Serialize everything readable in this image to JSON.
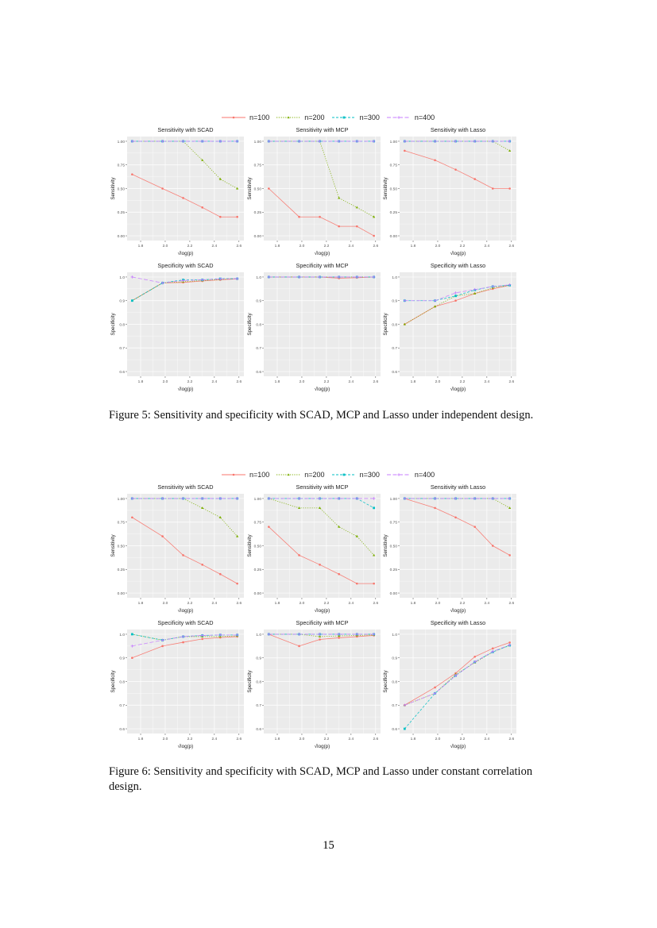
{
  "figures": [
    {
      "caption": "Figure 5: Sensitivity and specificity with SCAD, MCP and Lasso under independent design.",
      "legend": [
        "n=100",
        "n=200",
        "n=300",
        "n=400"
      ],
      "charts": [
        0,
        1,
        2,
        3,
        4,
        5
      ]
    },
    {
      "caption": "Figure 6: Sensitivity and specificity with SCAD, MCP and Lasso under constant correlation design.",
      "legend": [
        "n=100",
        "n=200",
        "n=300",
        "n=400"
      ],
      "charts": [
        6,
        7,
        8,
        9,
        10,
        11
      ]
    }
  ],
  "series_style": [
    {
      "name": "n=100",
      "color": "#F8766D",
      "dash": "solid",
      "marker": "dot"
    },
    {
      "name": "n=200",
      "color": "#7CAE00",
      "dash": "dotted",
      "marker": "triangle"
    },
    {
      "name": "n=300",
      "color": "#00BFC4",
      "dash": "dashed",
      "marker": "square"
    },
    {
      "name": "n=400",
      "color": "#C77CFF",
      "dash": "longdash",
      "marker": "plus"
    }
  ],
  "page_number": "15",
  "chart_data": [
    {
      "type": "line",
      "title": "Sensitivity with SCAD",
      "xlabel": "√log(p)",
      "ylabel": "Sensitivity",
      "x": [
        1.731,
        1.978,
        2.146,
        2.302,
        2.448,
        2.586
      ],
      "xticks": [
        "1.8",
        "2.0",
        "2.2",
        "2.4",
        "2.6"
      ],
      "yticks": [
        "0.00",
        "0.25",
        "0.50",
        "0.75",
        "1.00"
      ],
      "ylim": [
        -0.05,
        1.05
      ],
      "xlim": [
        1.69,
        2.64
      ],
      "grid": true,
      "legend": "top",
      "series": [
        {
          "name": "n=100",
          "values": [
            0.65,
            0.5,
            0.4,
            0.3,
            0.2,
            0.2
          ]
        },
        {
          "name": "n=200",
          "values": [
            1,
            1,
            1,
            0.8,
            0.6,
            0.5
          ]
        },
        {
          "name": "n=300",
          "values": [
            1,
            1,
            1,
            1,
            1,
            1
          ]
        },
        {
          "name": "n=400",
          "values": [
            1,
            1,
            1,
            1,
            1,
            1
          ]
        }
      ]
    },
    {
      "type": "line",
      "title": "Sensitivity with MCP",
      "xlabel": "√log(p)",
      "ylabel": "Sensitivity",
      "x": [
        1.731,
        1.978,
        2.146,
        2.302,
        2.448,
        2.586
      ],
      "xticks": [
        "1.8",
        "2.0",
        "2.2",
        "2.4",
        "2.6"
      ],
      "yticks": [
        "0.00",
        "0.25",
        "0.50",
        "0.75",
        "1.00"
      ],
      "ylim": [
        -0.05,
        1.05
      ],
      "xlim": [
        1.69,
        2.64
      ],
      "grid": true,
      "legend": "top",
      "series": [
        {
          "name": "n=100",
          "values": [
            0.5,
            0.2,
            0.2,
            0.1,
            0.1,
            0.0
          ]
        },
        {
          "name": "n=200",
          "values": [
            1,
            1,
            1,
            0.4,
            0.3,
            0.2
          ]
        },
        {
          "name": "n=300",
          "values": [
            1,
            1,
            1,
            1,
            1,
            1
          ]
        },
        {
          "name": "n=400",
          "values": [
            1,
            1,
            1,
            1,
            1,
            1
          ]
        }
      ]
    },
    {
      "type": "line",
      "title": "Sensitivity with Lasso",
      "xlabel": "√log(p)",
      "ylabel": "Sensitivity",
      "x": [
        1.731,
        1.978,
        2.146,
        2.302,
        2.448,
        2.586
      ],
      "xticks": [
        "1.8",
        "2.0",
        "2.2",
        "2.4",
        "2.6"
      ],
      "yticks": [
        "0.00",
        "0.25",
        "0.50",
        "0.75",
        "1.00"
      ],
      "ylim": [
        -0.05,
        1.05
      ],
      "xlim": [
        1.69,
        2.64
      ],
      "grid": true,
      "legend": "top",
      "series": [
        {
          "name": "n=100",
          "values": [
            0.9,
            0.8,
            0.7,
            0.6,
            0.5,
            0.5
          ]
        },
        {
          "name": "n=200",
          "values": [
            1,
            1,
            1,
            1,
            1,
            0.9
          ]
        },
        {
          "name": "n=300",
          "values": [
            1,
            1,
            1,
            1,
            1,
            1
          ]
        },
        {
          "name": "n=400",
          "values": [
            1,
            1,
            1,
            1,
            1,
            1
          ]
        }
      ]
    },
    {
      "type": "line",
      "title": "Specificity with SCAD",
      "xlabel": "√log(p)",
      "ylabel": "Specificity",
      "x": [
        1.731,
        1.978,
        2.146,
        2.302,
        2.448,
        2.586
      ],
      "xticks": [
        "1.8",
        "2.0",
        "2.2",
        "2.4",
        "2.6"
      ],
      "yticks": [
        "0.6",
        "0.7",
        "0.8",
        "0.9",
        "1.0"
      ],
      "ylim": [
        0.58,
        1.02
      ],
      "xlim": [
        1.69,
        2.64
      ],
      "grid": true,
      "legend": "top",
      "series": [
        {
          "name": "n=100",
          "values": [
            0.9,
            0.975,
            0.977,
            0.983,
            0.988,
            0.992
          ]
        },
        {
          "name": "n=200",
          "values": [
            0.9,
            0.975,
            0.98,
            0.985,
            0.99,
            0.993
          ]
        },
        {
          "name": "n=300",
          "values": [
            0.9,
            0.975,
            0.988,
            0.988,
            0.993,
            0.993
          ]
        },
        {
          "name": "n=400",
          "values": [
            1.0,
            0.975,
            0.985,
            0.988,
            0.992,
            0.993
          ]
        }
      ]
    },
    {
      "type": "line",
      "title": "Specificity with MCP",
      "xlabel": "√log(p)",
      "ylabel": "Specificity",
      "x": [
        1.731,
        1.978,
        2.146,
        2.302,
        2.448,
        2.586
      ],
      "xticks": [
        "1.8",
        "2.0",
        "2.2",
        "2.4",
        "2.6"
      ],
      "yticks": [
        "0.6",
        "0.7",
        "0.8",
        "0.9",
        "1.0"
      ],
      "ylim": [
        0.58,
        1.02
      ],
      "xlim": [
        1.69,
        2.64
      ],
      "grid": true,
      "legend": "top",
      "series": [
        {
          "name": "n=100",
          "values": [
            1,
            1,
            1,
            0.995,
            0.997,
            1
          ]
        },
        {
          "name": "n=200",
          "values": [
            1,
            1,
            1,
            1,
            1,
            1
          ]
        },
        {
          "name": "n=300",
          "values": [
            1,
            1,
            1,
            1,
            1,
            1
          ]
        },
        {
          "name": "n=400",
          "values": [
            1,
            1,
            1,
            1,
            1,
            1
          ]
        }
      ]
    },
    {
      "type": "line",
      "title": "Specificity with Lasso",
      "xlabel": "√log(p)",
      "ylabel": "Specificity",
      "x": [
        1.731,
        1.978,
        2.146,
        2.302,
        2.448,
        2.586
      ],
      "xticks": [
        "1.8",
        "2.0",
        "2.2",
        "2.4",
        "2.6"
      ],
      "yticks": [
        "0.6",
        "0.7",
        "0.8",
        "0.9",
        "1.0"
      ],
      "ylim": [
        0.58,
        1.02
      ],
      "xlim": [
        1.69,
        2.64
      ],
      "grid": true,
      "legend": "top",
      "series": [
        {
          "name": "n=100",
          "values": [
            0.8,
            0.875,
            0.9,
            0.93,
            0.95,
            0.965
          ]
        },
        {
          "name": "n=200",
          "values": [
            0.8,
            0.875,
            0.92,
            0.93,
            0.955,
            0.965
          ]
        },
        {
          "name": "n=300",
          "values": [
            0.9,
            0.9,
            0.92,
            0.945,
            0.96,
            0.965
          ]
        },
        {
          "name": "n=400",
          "values": [
            0.9,
            0.9,
            0.933,
            0.947,
            0.96,
            0.967
          ]
        }
      ]
    },
    {
      "type": "line",
      "title": "Sensitivity with SCAD",
      "xlabel": "√log(p)",
      "ylabel": "Sensitivity",
      "x": [
        1.731,
        1.978,
        2.146,
        2.302,
        2.448,
        2.586
      ],
      "xticks": [
        "1.8",
        "2.0",
        "2.2",
        "2.4",
        "2.6"
      ],
      "yticks": [
        "0.00",
        "0.25",
        "0.50",
        "0.75",
        "1.00"
      ],
      "ylim": [
        -0.05,
        1.05
      ],
      "xlim": [
        1.69,
        2.64
      ],
      "grid": true,
      "legend": "top",
      "series": [
        {
          "name": "n=100",
          "values": [
            0.8,
            0.6,
            0.4,
            0.3,
            0.2,
            0.1
          ]
        },
        {
          "name": "n=200",
          "values": [
            1,
            1,
            1,
            0.9,
            0.8,
            0.6
          ]
        },
        {
          "name": "n=300",
          "values": [
            1,
            1,
            1,
            1,
            1,
            1
          ]
        },
        {
          "name": "n=400",
          "values": [
            1,
            1,
            1,
            1,
            1,
            1
          ]
        }
      ]
    },
    {
      "type": "line",
      "title": "Sensitivity with MCP",
      "xlabel": "√log(p)",
      "ylabel": "Sensitivity",
      "x": [
        1.731,
        1.978,
        2.146,
        2.302,
        2.448,
        2.586
      ],
      "xticks": [
        "1.8",
        "2.0",
        "2.2",
        "2.4",
        "2.6"
      ],
      "yticks": [
        "0.00",
        "0.25",
        "0.50",
        "0.75",
        "1.00"
      ],
      "ylim": [
        -0.05,
        1.05
      ],
      "xlim": [
        1.69,
        2.64
      ],
      "grid": true,
      "legend": "top",
      "series": [
        {
          "name": "n=100",
          "values": [
            0.7,
            0.4,
            0.3,
            0.2,
            0.1,
            0.1
          ]
        },
        {
          "name": "n=200",
          "values": [
            1,
            0.9,
            0.9,
            0.7,
            0.6,
            0.4
          ]
        },
        {
          "name": "n=300",
          "values": [
            1,
            1,
            1,
            1,
            1,
            0.9
          ]
        },
        {
          "name": "n=400",
          "values": [
            1,
            1,
            1,
            1,
            1,
            1
          ]
        }
      ]
    },
    {
      "type": "line",
      "title": "Sensitivity with Lasso",
      "xlabel": "√log(p)",
      "ylabel": "Sensitivity",
      "x": [
        1.731,
        1.978,
        2.146,
        2.302,
        2.448,
        2.586
      ],
      "xticks": [
        "1.8",
        "2.0",
        "2.2",
        "2.4",
        "2.6"
      ],
      "yticks": [
        "0.00",
        "0.25",
        "0.50",
        "0.75",
        "1.00"
      ],
      "ylim": [
        -0.05,
        1.05
      ],
      "xlim": [
        1.69,
        2.64
      ],
      "grid": true,
      "legend": "top",
      "series": [
        {
          "name": "n=100",
          "values": [
            1,
            0.9,
            0.8,
            0.7,
            0.5,
            0.4
          ]
        },
        {
          "name": "n=200",
          "values": [
            1,
            1,
            1,
            1,
            1,
            0.9
          ]
        },
        {
          "name": "n=300",
          "values": [
            1,
            1,
            1,
            1,
            1,
            1
          ]
        },
        {
          "name": "n=400",
          "values": [
            1,
            1,
            1,
            1,
            1,
            1
          ]
        }
      ]
    },
    {
      "type": "line",
      "title": "Specificity with SCAD",
      "xlabel": "√log(p)",
      "ylabel": "Specificity",
      "x": [
        1.731,
        1.978,
        2.146,
        2.302,
        2.448,
        2.586
      ],
      "xticks": [
        "1.8",
        "2.0",
        "2.2",
        "2.4",
        "2.6"
      ],
      "yticks": [
        "0.6",
        "0.7",
        "0.8",
        "0.9",
        "1.0"
      ],
      "ylim": [
        0.58,
        1.02
      ],
      "xlim": [
        1.69,
        2.64
      ],
      "grid": true,
      "legend": "top",
      "series": [
        {
          "name": "n=100",
          "values": [
            0.9,
            0.95,
            0.966,
            0.98,
            0.986,
            0.99
          ]
        },
        {
          "name": "n=200",
          "values": [
            1,
            0.975,
            0.99,
            0.99,
            0.99,
            0.993
          ]
        },
        {
          "name": "n=300",
          "values": [
            1,
            0.975,
            0.99,
            0.995,
            0.997,
            0.997
          ]
        },
        {
          "name": "n=400",
          "values": [
            0.95,
            0.975,
            0.99,
            0.995,
            0.997,
            0.997
          ]
        }
      ]
    },
    {
      "type": "line",
      "title": "Specificity with MCP",
      "xlabel": "√log(p)",
      "ylabel": "Specificity",
      "x": [
        1.731,
        1.978,
        2.146,
        2.302,
        2.448,
        2.586
      ],
      "xticks": [
        "1.8",
        "2.0",
        "2.2",
        "2.4",
        "2.6"
      ],
      "yticks": [
        "0.6",
        "0.7",
        "0.8",
        "0.9",
        "1.0"
      ],
      "ylim": [
        0.58,
        1.02
      ],
      "xlim": [
        1.69,
        2.64
      ],
      "grid": true,
      "legend": "top",
      "series": [
        {
          "name": "n=100",
          "values": [
            1,
            0.95,
            0.978,
            0.985,
            0.99,
            0.995
          ]
        },
        {
          "name": "n=200",
          "values": [
            1,
            1,
            0.99,
            0.993,
            0.995,
            0.997
          ]
        },
        {
          "name": "n=300",
          "values": [
            1,
            1,
            1,
            1,
            1,
            1
          ]
        },
        {
          "name": "n=400",
          "values": [
            1,
            1,
            1,
            1,
            1,
            1
          ]
        }
      ]
    },
    {
      "type": "line",
      "title": "Specificity with Lasso",
      "xlabel": "√log(p)",
      "ylabel": "Specificity",
      "x": [
        1.731,
        1.978,
        2.146,
        2.302,
        2.448,
        2.586
      ],
      "xticks": [
        "1.8",
        "2.0",
        "2.2",
        "2.4",
        "2.6"
      ],
      "yticks": [
        "0.6",
        "0.7",
        "0.8",
        "0.9",
        "1.0"
      ],
      "ylim": [
        0.58,
        1.02
      ],
      "xlim": [
        1.69,
        2.64
      ],
      "grid": true,
      "legend": "top",
      "series": [
        {
          "name": "n=100",
          "values": [
            0.7,
            0.775,
            0.835,
            0.905,
            0.94,
            0.965
          ]
        },
        {
          "name": "n=200",
          "values": [
            0.7,
            0.75,
            0.83,
            0.88,
            0.925,
            0.953
          ]
        },
        {
          "name": "n=300",
          "values": [
            0.6,
            0.75,
            0.825,
            0.883,
            0.925,
            0.953
          ]
        },
        {
          "name": "n=400",
          "values": [
            0.7,
            0.75,
            0.825,
            0.883,
            0.927,
            0.955
          ]
        }
      ]
    }
  ]
}
